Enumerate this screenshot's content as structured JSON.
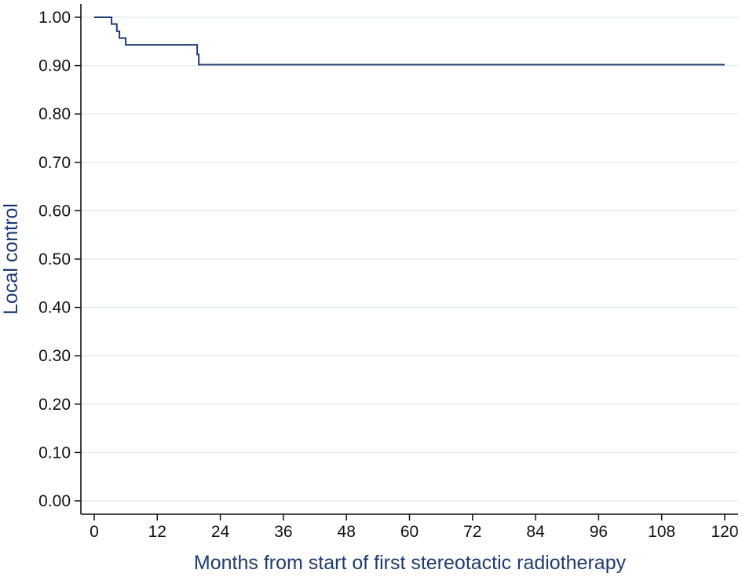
{
  "chart_data": {
    "type": "line",
    "step": true,
    "title": "",
    "xlabel": "Months from start of first stereotactic radiotherapy",
    "ylabel": "Local control",
    "xlim": [
      0,
      120
    ],
    "ylim": [
      0,
      1
    ],
    "x_ticks": [
      0,
      12,
      24,
      36,
      48,
      60,
      72,
      84,
      96,
      108,
      120
    ],
    "x_tick_labels": [
      "0",
      "12",
      "24",
      "36",
      "48",
      "60",
      "72",
      "84",
      "96",
      "108",
      "120"
    ],
    "y_ticks": [
      0,
      0.1,
      0.2,
      0.3,
      0.4,
      0.5,
      0.6,
      0.7,
      0.8,
      0.9,
      1.0
    ],
    "y_tick_labels": [
      "0.00",
      "0.10",
      "0.20",
      "0.30",
      "0.40",
      "0.50",
      "0.60",
      "0.70",
      "0.80",
      "0.90",
      "1.00"
    ],
    "grid": "horizontal",
    "legend": "none",
    "series": [
      {
        "color": "#1f3b73",
        "points": [
          {
            "x": 0,
            "y": 1.0
          },
          {
            "x": 3.3,
            "y": 0.986
          },
          {
            "x": 4.3,
            "y": 0.971
          },
          {
            "x": 4.8,
            "y": 0.957
          },
          {
            "x": 6.0,
            "y": 0.943
          },
          {
            "x": 19.6,
            "y": 0.923
          },
          {
            "x": 19.9,
            "y": 0.902
          },
          {
            "x": 120,
            "y": 0.902
          }
        ]
      }
    ]
  }
}
